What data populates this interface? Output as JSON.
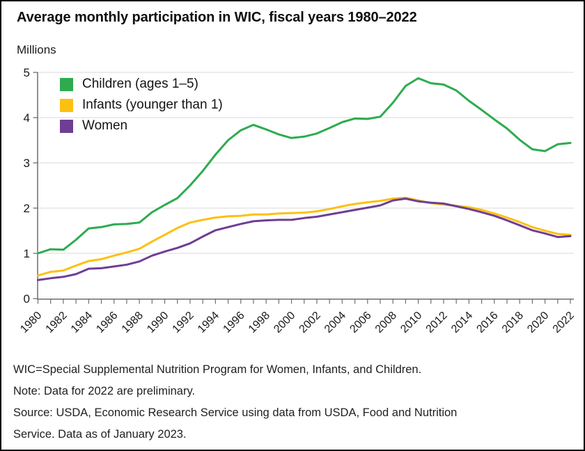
{
  "header": {
    "title": "Average monthly participation in WIC, fiscal years 1980–2022",
    "unit_label": "Millions"
  },
  "chart_data": {
    "type": "line",
    "title": "Average monthly participation in WIC, fiscal years 1980–2022",
    "ylabel": "Millions",
    "xlabel": "",
    "ylim": [
      0,
      5
    ],
    "yticks": [
      0,
      1,
      2,
      3,
      4,
      5
    ],
    "x_tick_label_every": 2,
    "grid": "horizontal",
    "legend_position": "top-left-inside",
    "x": [
      1980,
      1981,
      1982,
      1983,
      1984,
      1985,
      1986,
      1987,
      1988,
      1989,
      1990,
      1991,
      1992,
      1993,
      1994,
      1995,
      1996,
      1997,
      1998,
      1999,
      2000,
      2001,
      2002,
      2003,
      2004,
      2005,
      2006,
      2007,
      2008,
      2009,
      2010,
      2011,
      2012,
      2013,
      2014,
      2015,
      2016,
      2017,
      2018,
      2019,
      2020,
      2021,
      2022
    ],
    "series": [
      {
        "name": "Children (ages 1–5)",
        "color": "#2eab4f",
        "values": [
          1.0,
          1.09,
          1.08,
          1.3,
          1.55,
          1.58,
          1.64,
          1.65,
          1.68,
          1.91,
          2.07,
          2.22,
          2.5,
          2.82,
          3.18,
          3.5,
          3.72,
          3.84,
          3.74,
          3.63,
          3.55,
          3.58,
          3.65,
          3.77,
          3.9,
          3.98,
          3.97,
          4.02,
          4.33,
          4.7,
          4.87,
          4.76,
          4.73,
          4.6,
          4.37,
          4.17,
          3.96,
          3.76,
          3.51,
          3.3,
          3.26,
          3.41,
          3.44
        ]
      },
      {
        "name": "Infants (younger than 1)",
        "color": "#fdc011",
        "values": [
          0.51,
          0.59,
          0.62,
          0.73,
          0.83,
          0.87,
          0.95,
          1.02,
          1.1,
          1.26,
          1.41,
          1.56,
          1.68,
          1.74,
          1.79,
          1.82,
          1.83,
          1.86,
          1.86,
          1.88,
          1.89,
          1.9,
          1.93,
          1.98,
          2.04,
          2.09,
          2.13,
          2.16,
          2.21,
          2.23,
          2.17,
          2.11,
          2.08,
          2.05,
          2.02,
          1.96,
          1.88,
          1.79,
          1.69,
          1.58,
          1.5,
          1.43,
          1.41
        ]
      },
      {
        "name": "Women",
        "color": "#6e3e95",
        "values": [
          0.41,
          0.45,
          0.48,
          0.54,
          0.66,
          0.67,
          0.71,
          0.75,
          0.82,
          0.95,
          1.04,
          1.12,
          1.22,
          1.37,
          1.51,
          1.58,
          1.65,
          1.71,
          1.73,
          1.74,
          1.74,
          1.78,
          1.81,
          1.86,
          1.91,
          1.96,
          2.01,
          2.06,
          2.17,
          2.21,
          2.15,
          2.12,
          2.1,
          2.04,
          1.98,
          1.91,
          1.83,
          1.73,
          1.62,
          1.51,
          1.44,
          1.36,
          1.38
        ]
      }
    ]
  },
  "footer": {
    "definition": "WIC=Special Supplemental Nutrition Program for Women, Infants, and Children.",
    "note": "Note: Data for 2022 are preliminary.",
    "source": "Source: USDA, Economic Research Service using data from USDA, Food and Nutrition Service. Data as of January 2023."
  }
}
